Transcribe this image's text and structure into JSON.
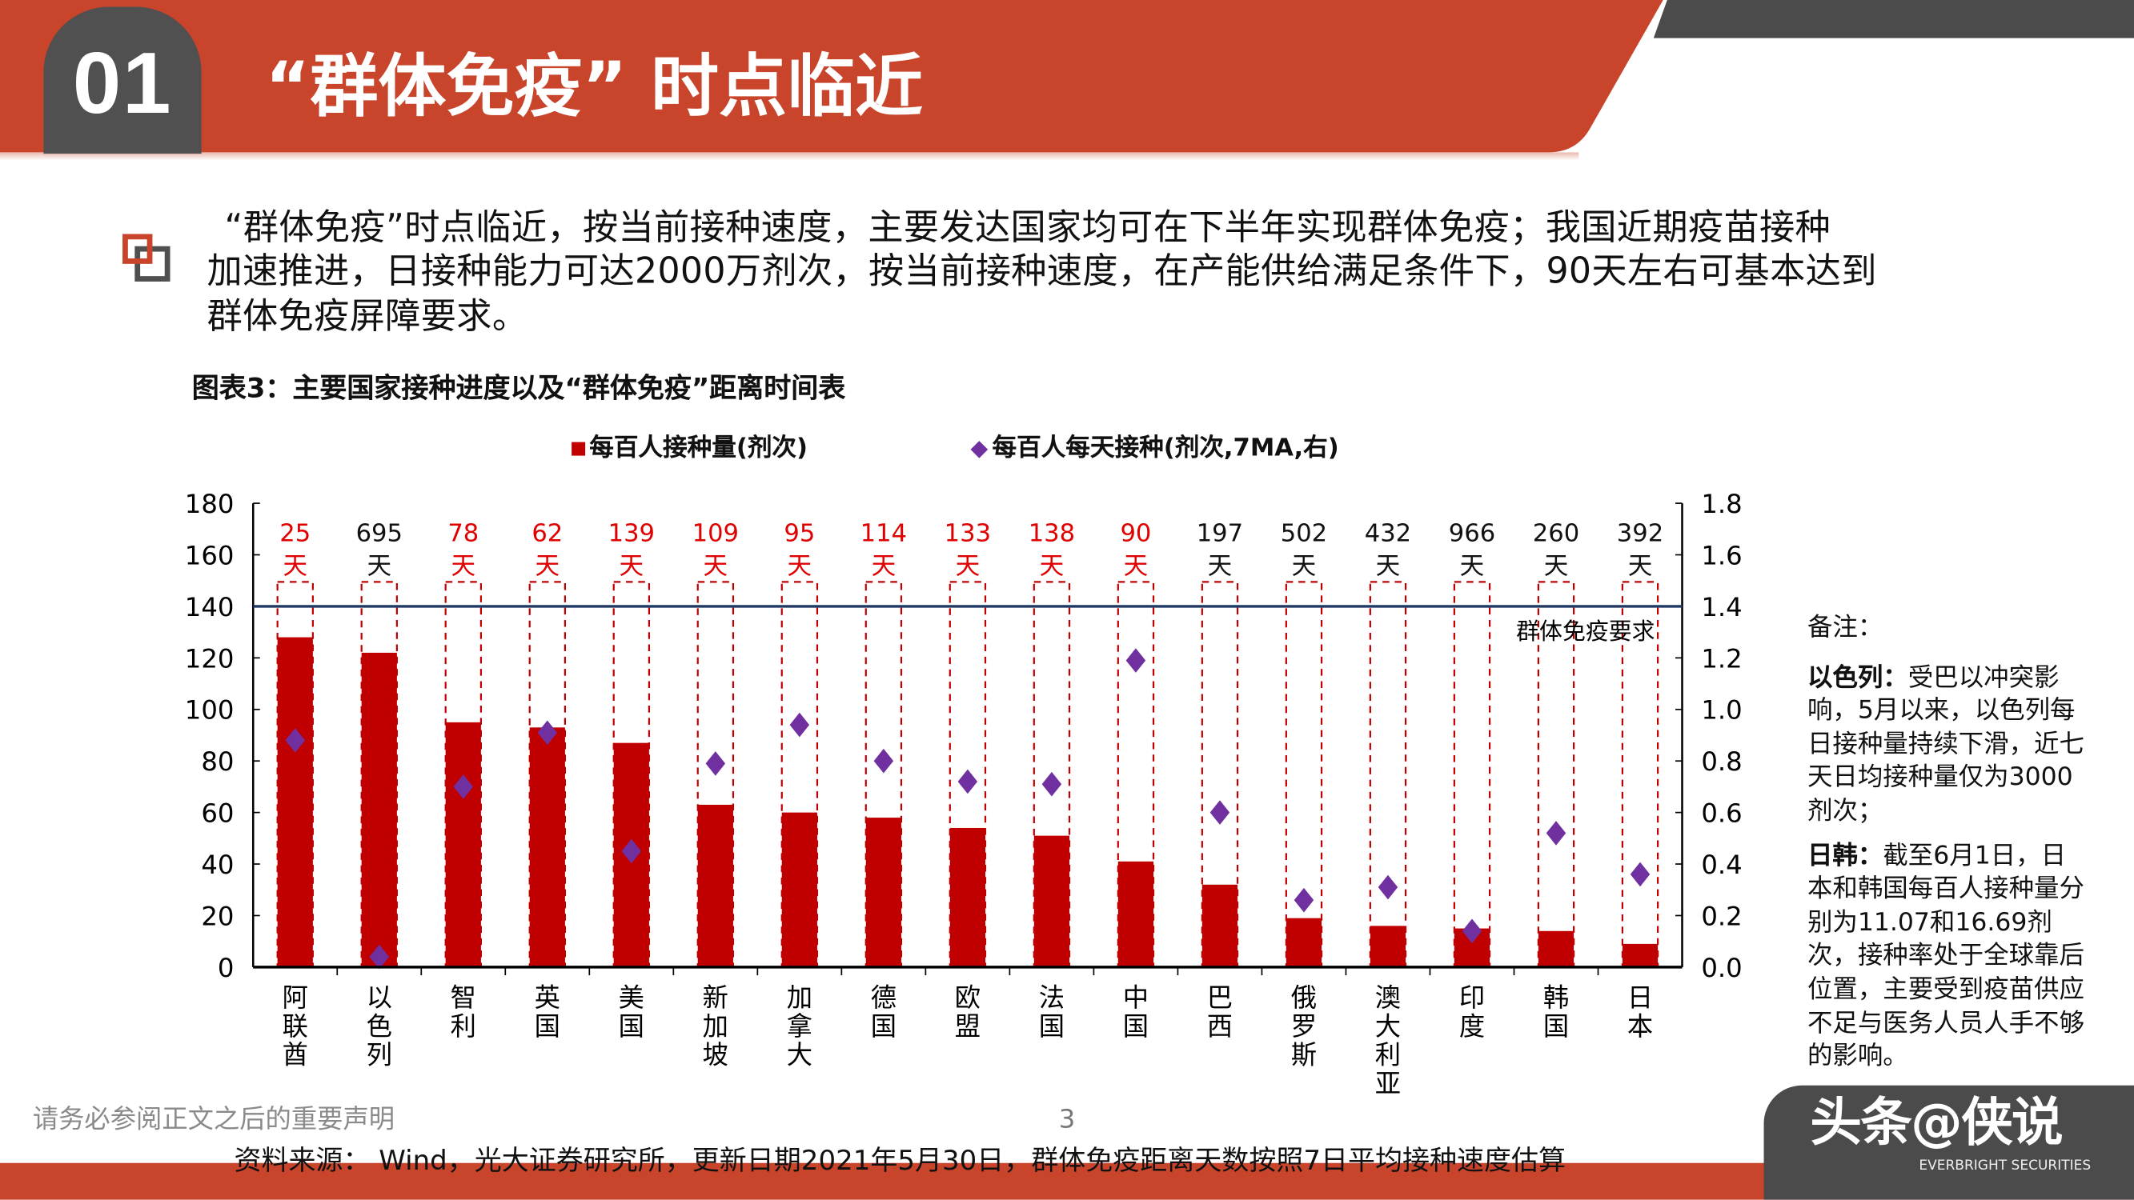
{
  "header": {
    "section_number": "01",
    "title": "“群体免疫”  时点临近",
    "colors": {
      "brand_orange": "#C8442A",
      "dark_gray": "#4B4B4B"
    }
  },
  "body": {
    "lines": [
      "“群体免疫”时点临近，按当前接种速度，主要发达国家均可在下半年实现群体免疫；我国近期疫苗接种",
      "加速推进，日接种能力可达2000万剂次，按当前接种速度，在产能供给满足条件下，90天左右可基本达到",
      "群体免疫屏障要求。"
    ],
    "bullet_icon": "overlapping-squares-icon"
  },
  "figure_title": "图表3：主要国家接种进度以及“群体免疫”距离时间表",
  "chart_data": {
    "type": "bar",
    "categories": [
      "阿联酋",
      "以色列",
      "智利",
      "英国",
      "美国",
      "新加坡",
      "加拿大",
      "德国",
      "欧盟",
      "法国",
      "中国",
      "巴西",
      "俄罗斯",
      "澳大利亚",
      "印度",
      "韩国",
      "日本"
    ],
    "series": [
      {
        "name": "每百人接种量(剂次)",
        "type": "bar",
        "axis": "left",
        "color": "#C00000",
        "values": [
          128,
          122,
          95,
          93,
          87,
          63,
          60,
          58,
          54,
          51,
          41,
          32,
          19,
          16,
          15,
          14,
          9
        ]
      },
      {
        "name": "每百人每天接种(剂次,7MA,右)",
        "type": "scatter",
        "marker": "diamond",
        "axis": "right",
        "color": "#7030A0",
        "values": [
          0.88,
          0.04,
          0.7,
          0.91,
          0.45,
          0.79,
          0.94,
          0.8,
          0.72,
          0.71,
          1.19,
          0.6,
          0.26,
          0.31,
          0.14,
          0.52,
          0.36
        ]
      }
    ],
    "days_to_herd_immunity": {
      "values": [
        25,
        695,
        78,
        62,
        139,
        109,
        95,
        114,
        133,
        138,
        90,
        197,
        502,
        432,
        966,
        260,
        392
      ],
      "unit": "天",
      "highlight": [
        true,
        false,
        true,
        true,
        true,
        true,
        true,
        true,
        true,
        true,
        true,
        false,
        false,
        false,
        false,
        false,
        false
      ],
      "highlight_color": "#E00000"
    },
    "reference_line": {
      "value": 140,
      "label": "群体免疫要求",
      "color": "#1F3864"
    },
    "left_axis": {
      "ylim": [
        0,
        180
      ],
      "ticks": [
        "0",
        "20",
        "40",
        "60",
        "80",
        "100",
        "120",
        "140",
        "160",
        "180"
      ]
    },
    "right_axis": {
      "ylim": [
        0,
        1.8
      ],
      "ticks": [
        "0.0",
        "0.2",
        "0.4",
        "0.6",
        "0.8",
        "1.0",
        "1.2",
        "1.4",
        "1.6",
        "1.8"
      ]
    },
    "legend_position": "top",
    "grid": false
  },
  "notes": {
    "heading": "备注：",
    "items": [
      {
        "lead": "以色列：",
        "text": "受巴以冲突影响，5月以来，以色列每日接种量持续下滑，近七天日均接种量仅为3000剂次；"
      },
      {
        "lead": "日韩：",
        "text": "截至6月1日，日本和韩国每百人接种量分别为11.07和16.69剂次，接种率处于全球靠后位置，主要受到疫苗供应不足与医务人员人手不够的影响。"
      }
    ]
  },
  "footer": {
    "disclaimer": "请务必参阅正文之后的重要声明",
    "page_number": "3",
    "source": "资料来源： Wind，光大证券研究所，更新日期2021年5月30日，群体免疫距离天数按照7日平均接种速度估算",
    "watermark": "头条@侠说",
    "logo_sub": "EVERBRIGHT SECURITIES"
  }
}
